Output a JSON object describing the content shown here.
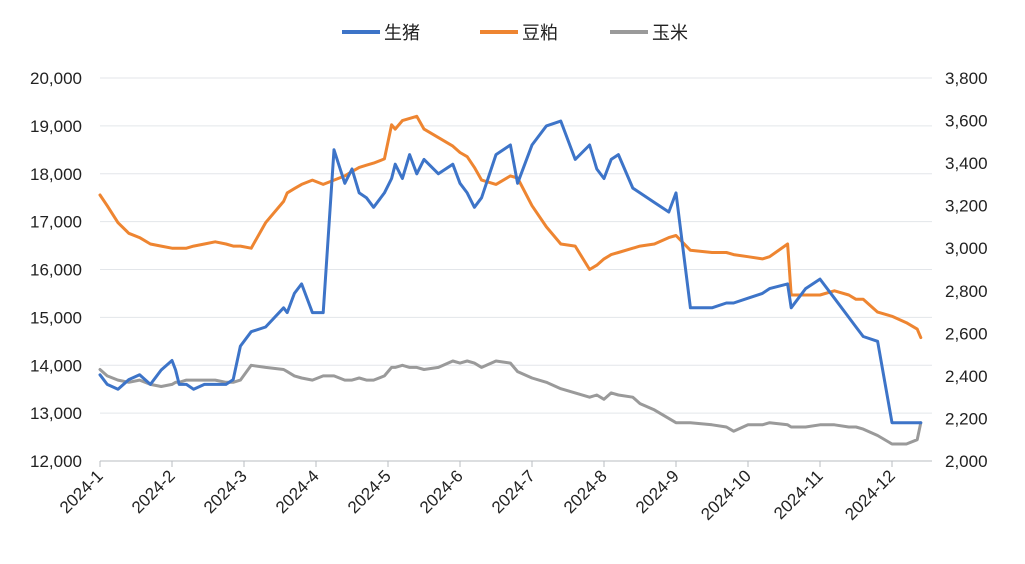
{
  "chart_data": {
    "type": "line",
    "title": "",
    "x_categories": [
      "2024-1",
      "2024-2",
      "2024-3",
      "2024-4",
      "2024-5",
      "2024-6",
      "2024-7",
      "2024-8",
      "2024-9",
      "2024-10",
      "2024-11",
      "2024-12"
    ],
    "left_axis": {
      "min": 12000,
      "max": 20000,
      "ticks": [
        "12,000",
        "13,000",
        "14,000",
        "15,000",
        "16,000",
        "17,000",
        "18,000",
        "19,000",
        "20,000"
      ]
    },
    "right_axis": {
      "min": 2000,
      "max": 3800,
      "ticks": [
        "2,000",
        "2,200",
        "2,400",
        "2,600",
        "2,800",
        "3,000",
        "3,200",
        "3,400",
        "3,600",
        "3,800"
      ]
    },
    "legend_position": "top-center",
    "colors": {
      "hog": "#3d74c8",
      "meal": "#ee8531",
      "corn": "#9a9a9a"
    },
    "series": [
      {
        "name": "生猪",
        "axis": "left",
        "x": [
          0,
          0.1,
          0.25,
          0.4,
          0.55,
          0.7,
          0.85,
          1.0,
          1.05,
          1.1,
          1.2,
          1.3,
          1.45,
          1.6,
          1.75,
          1.85,
          1.95,
          2.1,
          2.3,
          2.55,
          2.6,
          2.7,
          2.8,
          2.95,
          3.1,
          3.25,
          3.4,
          3.5,
          3.6,
          3.7,
          3.8,
          3.95,
          4.05,
          4.1,
          4.2,
          4.3,
          4.4,
          4.5,
          4.7,
          4.9,
          5.0,
          5.1,
          5.2,
          5.3,
          5.5,
          5.7,
          5.8,
          6.0,
          6.2,
          6.4,
          6.6,
          6.8,
          6.9,
          7.0,
          7.1,
          7.2,
          7.4,
          7.5,
          7.7,
          7.9,
          8.0,
          8.2,
          8.5,
          8.7,
          8.8,
          9.0,
          9.2,
          9.3,
          9.55,
          9.6,
          9.8,
          10.0,
          10.2,
          10.4,
          10.5,
          10.6,
          10.8,
          11.0,
          11.2,
          11.35,
          11.4
        ],
        "values": [
          13800,
          13600,
          13500,
          13700,
          13800,
          13600,
          13900,
          14100,
          13900,
          13600,
          13600,
          13500,
          13600,
          13600,
          13600,
          13700,
          14400,
          14700,
          14800,
          15200,
          15100,
          15500,
          15700,
          15100,
          15100,
          18500,
          17800,
          18100,
          17600,
          17500,
          17300,
          17600,
          17900,
          18200,
          17900,
          18400,
          18000,
          18300,
          18000,
          18200,
          17800,
          17600,
          17300,
          17500,
          18400,
          18600,
          17800,
          18600,
          19000,
          19100,
          18300,
          18600,
          18100,
          17900,
          18300,
          18400,
          17700,
          17600,
          17400,
          17200,
          17600,
          15200,
          15200,
          15300,
          15300,
          15400,
          15500,
          15600,
          15700,
          15200,
          15600,
          15800,
          15400,
          15000,
          14800,
          14600,
          14500,
          12800,
          12800,
          12800,
          12800
        ]
      },
      {
        "name": "豆粕",
        "axis": "right",
        "x": [
          0,
          0.1,
          0.25,
          0.4,
          0.55,
          0.7,
          0.85,
          1.0,
          1.05,
          1.1,
          1.2,
          1.3,
          1.45,
          1.6,
          1.75,
          1.85,
          1.95,
          2.1,
          2.3,
          2.55,
          2.6,
          2.7,
          2.8,
          2.95,
          3.1,
          3.25,
          3.4,
          3.5,
          3.6,
          3.7,
          3.8,
          3.95,
          4.05,
          4.1,
          4.2,
          4.3,
          4.4,
          4.5,
          4.7,
          4.9,
          5.0,
          5.1,
          5.2,
          5.3,
          5.5,
          5.7,
          5.8,
          6.0,
          6.2,
          6.4,
          6.6,
          6.8,
          6.9,
          7.0,
          7.1,
          7.2,
          7.4,
          7.5,
          7.7,
          7.9,
          8.0,
          8.2,
          8.5,
          8.7,
          8.8,
          9.0,
          9.2,
          9.3,
          9.55,
          9.6,
          9.8,
          10.0,
          10.2,
          10.4,
          10.5,
          10.6,
          10.8,
          11.0,
          11.2,
          11.35,
          11.4
        ],
        "values": [
          3250,
          3200,
          3120,
          3070,
          3050,
          3020,
          3010,
          3000,
          3000,
          3000,
          3000,
          3010,
          3020,
          3030,
          3020,
          3010,
          3010,
          3000,
          3120,
          3220,
          3260,
          3280,
          3300,
          3320,
          3300,
          3320,
          3340,
          3360,
          3380,
          3390,
          3400,
          3420,
          3580,
          3560,
          3600,
          3610,
          3620,
          3560,
          3520,
          3480,
          3450,
          3430,
          3380,
          3320,
          3300,
          3340,
          3330,
          3200,
          3100,
          3020,
          3010,
          2900,
          2920,
          2950,
          2970,
          2980,
          3000,
          3010,
          3020,
          3050,
          3060,
          2990,
          2980,
          2980,
          2970,
          2960,
          2950,
          2960,
          3020,
          2780,
          2780,
          2780,
          2800,
          2780,
          2760,
          2760,
          2700,
          2680,
          2650,
          2620,
          2580
        ]
      },
      {
        "name": "玉米",
        "axis": "right",
        "x": [
          0,
          0.1,
          0.25,
          0.4,
          0.55,
          0.7,
          0.85,
          1.0,
          1.05,
          1.1,
          1.2,
          1.3,
          1.45,
          1.6,
          1.75,
          1.85,
          1.95,
          2.1,
          2.3,
          2.55,
          2.6,
          2.7,
          2.8,
          2.95,
          3.1,
          3.25,
          3.4,
          3.5,
          3.6,
          3.7,
          3.8,
          3.95,
          4.05,
          4.1,
          4.2,
          4.3,
          4.4,
          4.5,
          4.7,
          4.9,
          5.0,
          5.1,
          5.2,
          5.3,
          5.5,
          5.7,
          5.8,
          6.0,
          6.2,
          6.4,
          6.6,
          6.8,
          6.9,
          7.0,
          7.1,
          7.2,
          7.4,
          7.5,
          7.7,
          7.9,
          8.0,
          8.2,
          8.5,
          8.7,
          8.8,
          9.0,
          9.2,
          9.3,
          9.55,
          9.6,
          9.8,
          10.0,
          10.2,
          10.4,
          10.5,
          10.6,
          10.8,
          11.0,
          11.2,
          11.35,
          11.4
        ],
        "values": [
          2430,
          2400,
          2380,
          2370,
          2380,
          2360,
          2350,
          2360,
          2370,
          2370,
          2380,
          2380,
          2380,
          2380,
          2370,
          2370,
          2380,
          2450,
          2440,
          2430,
          2420,
          2400,
          2390,
          2380,
          2400,
          2400,
          2380,
          2380,
          2390,
          2380,
          2380,
          2400,
          2440,
          2440,
          2450,
          2440,
          2440,
          2430,
          2440,
          2470,
          2460,
          2470,
          2460,
          2440,
          2470,
          2460,
          2420,
          2390,
          2370,
          2340,
          2320,
          2300,
          2310,
          2290,
          2320,
          2310,
          2300,
          2270,
          2240,
          2200,
          2180,
          2180,
          2170,
          2160,
          2140,
          2170,
          2170,
          2180,
          2170,
          2160,
          2160,
          2170,
          2170,
          2160,
          2160,
          2150,
          2120,
          2080,
          2080,
          2100,
          2180
        ]
      }
    ]
  }
}
